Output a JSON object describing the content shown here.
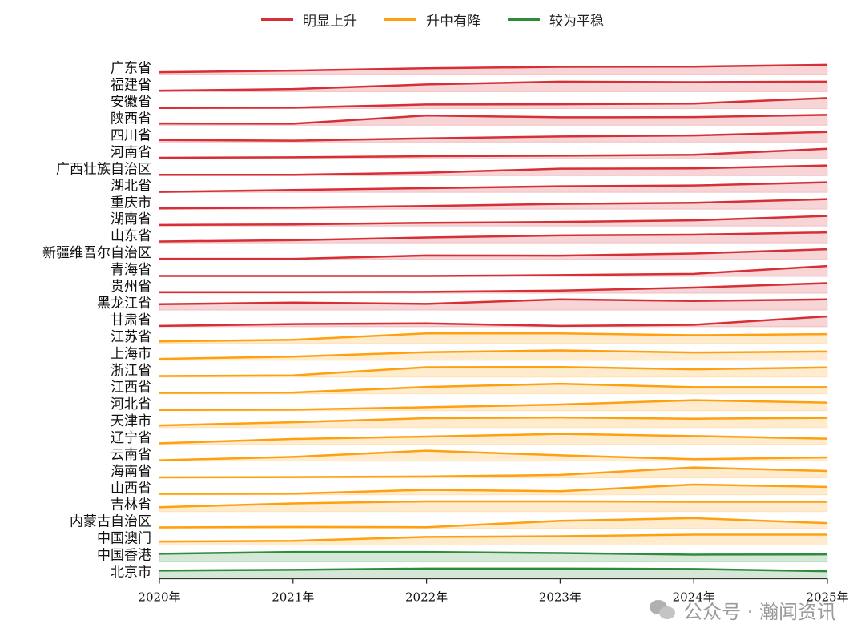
{
  "chart_data": {
    "type": "area",
    "layout": "ridgeline",
    "x": [
      "2020年",
      "2021年",
      "2022年",
      "2023年",
      "2024年",
      "2025年"
    ],
    "legend": {
      "placement": "top",
      "items": [
        {
          "name": "明显上升",
          "color": "#d62f35"
        },
        {
          "name": "升中有降",
          "color": "#ffa010"
        },
        {
          "name": "较为平稳",
          "color": "#2e8b3a"
        }
      ]
    },
    "grid": false,
    "value_note_unit": "",
    "series": [
      {
        "name": "广东省",
        "group": 0,
        "values": [
          0.25,
          0.4,
          0.62,
          0.75,
          0.77,
          0.95
        ]
      },
      {
        "name": "福建省",
        "group": 0,
        "values": [
          0.1,
          0.25,
          0.68,
          0.95,
          0.9,
          0.95
        ]
      },
      {
        "name": "安徽省",
        "group": 0,
        "values": [
          0.05,
          0.08,
          0.38,
          0.4,
          0.47,
          0.98
        ]
      },
      {
        "name": "陕西省",
        "group": 0,
        "values": [
          0.17,
          0.15,
          0.92,
          0.75,
          0.77,
          0.98
        ]
      },
      {
        "name": "四川省",
        "group": 0,
        "values": [
          0.2,
          0.13,
          0.35,
          0.53,
          0.62,
          0.95
        ]
      },
      {
        "name": "河南省",
        "group": 0,
        "values": [
          0.1,
          0.15,
          0.25,
          0.3,
          0.38,
          0.95
        ]
      },
      {
        "name": "广西壮族自治区",
        "group": 0,
        "values": [
          0.08,
          0.08,
          0.28,
          0.65,
          0.68,
          0.95
        ]
      },
      {
        "name": "湖北省",
        "group": 0,
        "values": [
          0.05,
          0.23,
          0.4,
          0.58,
          0.65,
          0.95
        ]
      },
      {
        "name": "重庆市",
        "group": 0,
        "values": [
          0.08,
          0.15,
          0.3,
          0.5,
          0.6,
          0.95
        ]
      },
      {
        "name": "湖南省",
        "group": 0,
        "values": [
          0.1,
          0.15,
          0.3,
          0.38,
          0.53,
          0.95
        ]
      },
      {
        "name": "山东省",
        "group": 0,
        "values": [
          0.13,
          0.25,
          0.5,
          0.7,
          0.77,
          0.98
        ]
      },
      {
        "name": "新疆维吾尔自治区",
        "group": 0,
        "values": [
          0.08,
          0.08,
          0.4,
          0.38,
          0.58,
          0.98
        ]
      },
      {
        "name": "青海省",
        "group": 0,
        "values": [
          0.05,
          0.05,
          0.05,
          0.13,
          0.25,
          0.98
        ]
      },
      {
        "name": "贵州省",
        "group": 0,
        "values": [
          0.1,
          0.1,
          0.13,
          0.25,
          0.53,
          0.95
        ]
      },
      {
        "name": "黑龙江省",
        "group": 0,
        "values": [
          0.55,
          0.7,
          0.58,
          1.0,
          0.85,
          1.0
        ]
      },
      {
        "name": "甘肃省",
        "group": 0,
        "values": [
          0.09,
          0.26,
          0.32,
          0.09,
          0.19,
          0.98
        ]
      },
      {
        "name": "江苏省",
        "group": 1,
        "values": [
          0.21,
          0.36,
          0.96,
          0.96,
          0.79,
          0.89
        ]
      },
      {
        "name": "上海市",
        "group": 1,
        "values": [
          0.14,
          0.36,
          0.77,
          0.94,
          0.74,
          0.84
        ]
      },
      {
        "name": "浙江省",
        "group": 1,
        "values": [
          0.11,
          0.17,
          0.94,
          0.96,
          0.74,
          0.92
        ]
      },
      {
        "name": "江西省",
        "group": 1,
        "values": [
          0.11,
          0.14,
          0.66,
          0.96,
          0.64,
          0.64
        ]
      },
      {
        "name": "河北省",
        "group": 1,
        "values": [
          0.09,
          0.11,
          0.34,
          0.59,
          1.0,
          0.77
        ]
      },
      {
        "name": "天津市",
        "group": 1,
        "values": [
          0.21,
          0.51,
          0.89,
          0.96,
          0.84,
          0.92
        ]
      },
      {
        "name": "辽宁省",
        "group": 1,
        "values": [
          0.11,
          0.51,
          0.74,
          0.99,
          0.79,
          0.54
        ]
      },
      {
        "name": "云南省",
        "group": 1,
        "values": [
          0.09,
          0.41,
          0.99,
          0.56,
          0.19,
          0.36
        ]
      },
      {
        "name": "海南省",
        "group": 1,
        "values": [
          0.06,
          0.09,
          0.14,
          0.29,
          0.99,
          0.66
        ]
      },
      {
        "name": "山西省",
        "group": 1,
        "values": [
          0.09,
          0.11,
          0.47,
          0.34,
          0.96,
          0.74
        ]
      },
      {
        "name": "吉林省",
        "group": 1,
        "values": [
          0.41,
          0.77,
          0.96,
          0.96,
          0.92,
          0.92
        ]
      },
      {
        "name": "内蒙古自治区",
        "group": 1,
        "values": [
          0.09,
          0.14,
          0.11,
          0.71,
          0.96,
          0.49
        ]
      },
      {
        "name": "中国澳门",
        "group": 1,
        "values": [
          0.34,
          0.41,
          0.77,
          0.84,
          0.99,
          0.99
        ]
      },
      {
        "name": "中国香港",
        "group": 2,
        "values": [
          0.77,
          0.94,
          0.94,
          0.84,
          0.69,
          0.71
        ]
      },
      {
        "name": "北京市",
        "group": 2,
        "values": [
          0.77,
          0.84,
          0.96,
          0.96,
          0.92,
          0.71
        ]
      }
    ]
  },
  "watermark": {
    "text": "公众号 · 瀚闻资讯",
    "icon": "wechat-icon"
  }
}
